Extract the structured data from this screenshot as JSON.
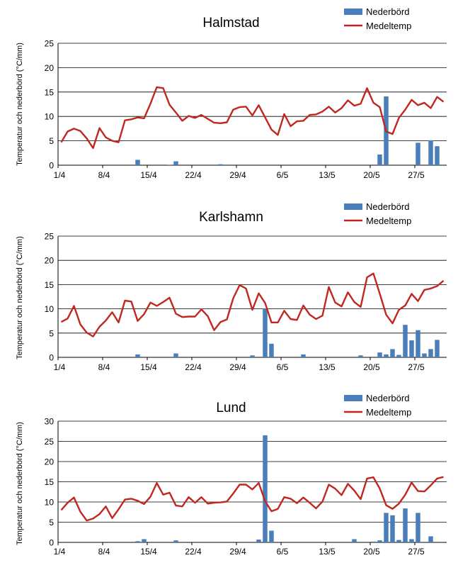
{
  "colors": {
    "precip": "#4a7ebb",
    "temp": "#c0281f",
    "grid": "#000000"
  },
  "chart_data": [
    {
      "type": "bar+line",
      "title": "Halmstad",
      "ylabel": "Temperatur och nederbörd (°C/mm)",
      "ylim": [
        0,
        25
      ],
      "yticks": [
        0,
        5,
        10,
        15,
        20,
        25
      ],
      "x_ticks": [
        "1/4",
        "8/4",
        "15/4",
        "22/4",
        "29/4",
        "6/5",
        "13/5",
        "20/5",
        "27/5"
      ],
      "legend": [
        "Nederbörd",
        "Medeltemp"
      ],
      "legend_position": "top-right",
      "days": 61,
      "precip": [
        0,
        0,
        0,
        0,
        0,
        0,
        0,
        0,
        0,
        0,
        0,
        0,
        1.1,
        0,
        0,
        0,
        0,
        0.1,
        0.8,
        0,
        0,
        0,
        0,
        0,
        0,
        0.2,
        0,
        0,
        0,
        0,
        0,
        0,
        0,
        0,
        0,
        0,
        0,
        0,
        0,
        0,
        0,
        0,
        0,
        0,
        0,
        0,
        0,
        0,
        0,
        0,
        2.2,
        14.1,
        0,
        0,
        0,
        0,
        4.6,
        0,
        5.1,
        3.9,
        0
      ],
      "temp": [
        4.7,
        6.9,
        7.5,
        7.0,
        5.5,
        3.5,
        7.6,
        5.7,
        5.0,
        4.7,
        9.2,
        9.4,
        9.8,
        9.6,
        12.6,
        16.0,
        15.8,
        12.4,
        10.8,
        9.1,
        10.1,
        9.7,
        10.3,
        9.5,
        8.7,
        8.6,
        8.8,
        11.4,
        11.9,
        12.0,
        10.2,
        12.3,
        9.8,
        7.3,
        6.2,
        10.5,
        8.0,
        9.0,
        9.1,
        10.3,
        10.4,
        11.0,
        12.0,
        10.8,
        11.7,
        13.3,
        12.2,
        12.6,
        15.8,
        12.8,
        11.9,
        6.9,
        6.4,
        9.7,
        11.4,
        13.4,
        12.3,
        12.8,
        11.7,
        14.0,
        13.0
      ]
    },
    {
      "type": "bar+line",
      "title": "Karlshamn",
      "ylabel": "Temperatur och nederbörd (°C/mm)",
      "ylim": [
        0,
        25
      ],
      "yticks": [
        0,
        5,
        10,
        15,
        20,
        25
      ],
      "x_ticks": [
        "1/4",
        "8/4",
        "15/4",
        "22/4",
        "29/4",
        "6/5",
        "13/5",
        "20/5",
        "27/5"
      ],
      "legend": [
        "Nederbörd",
        "Medeltemp"
      ],
      "legend_position": "top-right",
      "days": 61,
      "precip": [
        0,
        0,
        0,
        0,
        0,
        0,
        0,
        0,
        0,
        0,
        0,
        0,
        0.6,
        0,
        0,
        0,
        0,
        0,
        0.8,
        0,
        0,
        0,
        0,
        0,
        0,
        0,
        0,
        0,
        0,
        0,
        0.4,
        0,
        10.0,
        2.8,
        0,
        0,
        0,
        0,
        0.6,
        0,
        0,
        0,
        0,
        0,
        0,
        0,
        0,
        0.4,
        0,
        0,
        1.0,
        0.6,
        1.7,
        0.5,
        6.7,
        3.5,
        5.6,
        0.8,
        1.7,
        3.6,
        0
      ],
      "temp": [
        7.3,
        8.0,
        10.6,
        6.8,
        5.1,
        4.3,
        6.3,
        7.6,
        9.3,
        7.2,
        11.7,
        11.5,
        7.5,
        8.9,
        11.3,
        10.6,
        11.4,
        12.3,
        9.0,
        8.3,
        8.4,
        8.4,
        9.9,
        8.5,
        5.6,
        7.3,
        7.8,
        12.2,
        14.9,
        14.2,
        9.8,
        13.2,
        11.2,
        7.2,
        7.2,
        9.6,
        7.9,
        7.7,
        10.7,
        8.8,
        7.9,
        8.6,
        14.5,
        11.3,
        10.5,
        13.4,
        11.4,
        10.4,
        16.5,
        17.3,
        13.1,
        8.8,
        7.0,
        9.8,
        10.7,
        13.1,
        11.6,
        13.9,
        14.2,
        14.7,
        15.8
      ]
    },
    {
      "type": "bar+line",
      "title": "Lund",
      "ylabel": "Temperatur och nederbörd (°C/mm)",
      "ylim": [
        0,
        30
      ],
      "yticks": [
        0,
        5,
        10,
        15,
        20,
        25,
        30
      ],
      "x_ticks": [
        "1/4",
        "8/4",
        "15/4",
        "22/4",
        "29/4",
        "6/5",
        "13/5",
        "20/5",
        "27/5"
      ],
      "legend": [
        "Nederbörd",
        "Medeltemp"
      ],
      "legend_position": "top-right",
      "days": 61,
      "precip": [
        0,
        0,
        0,
        0,
        0,
        0,
        0,
        0,
        0,
        0,
        0,
        0,
        0.3,
        0.8,
        0,
        0,
        0,
        0,
        0.5,
        0,
        0,
        0,
        0,
        0,
        0,
        0,
        0,
        0,
        0,
        0,
        0,
        0.7,
        26.5,
        2.9,
        0,
        0,
        0,
        0,
        0,
        0,
        0,
        0,
        0,
        0,
        0,
        0,
        0.8,
        0,
        0,
        0.2,
        0.5,
        7.3,
        6.7,
        0.6,
        8.4,
        0.8,
        7.3,
        0,
        1.5,
        0,
        0
      ],
      "temp": [
        8.0,
        9.8,
        11.1,
        7.6,
        5.4,
        5.9,
        7.0,
        8.9,
        6.0,
        8.2,
        10.6,
        10.8,
        10.3,
        9.5,
        11.3,
        14.7,
        11.8,
        12.3,
        9.1,
        8.9,
        11.2,
        9.8,
        11.2,
        9.6,
        9.8,
        9.9,
        10.1,
        12.1,
        14.3,
        14.3,
        13.1,
        14.7,
        10.2,
        7.7,
        8.3,
        11.2,
        10.8,
        9.7,
        11.1,
        9.8,
        8.4,
        10.1,
        14.3,
        13.3,
        11.7,
        14.5,
        12.8,
        10.7,
        15.8,
        16.1,
        13.3,
        9.2,
        8.3,
        9.6,
        11.8,
        14.8,
        12.7,
        12.6,
        14.1,
        15.8,
        16.2
      ]
    }
  ]
}
